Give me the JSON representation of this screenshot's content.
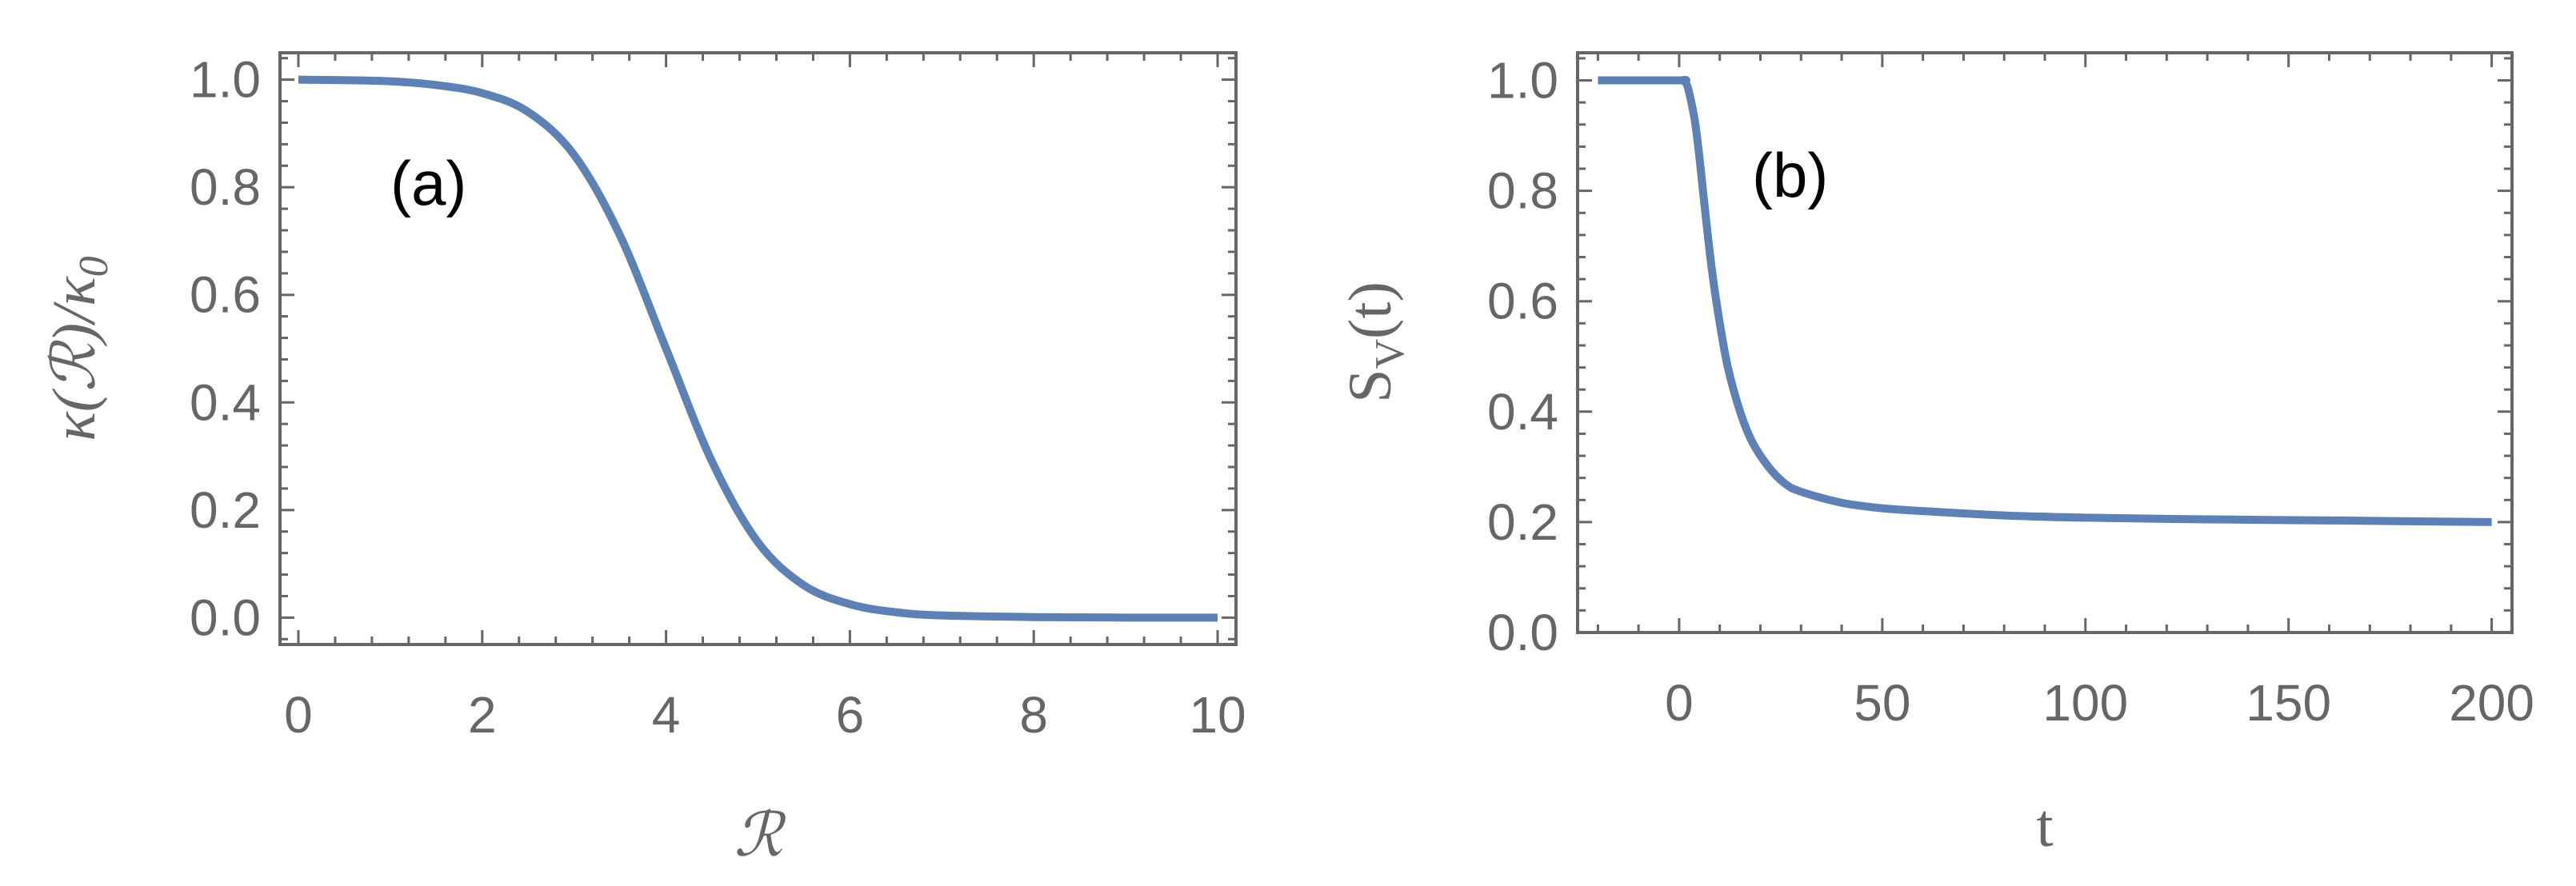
{
  "chart_data": [
    {
      "type": "line",
      "panel_label": "(a)",
      "xlabel": "ℛ",
      "ylabel": "κ(ℛ)/κ0",
      "ylabel_parts": {
        "pre": "κ(ℛ)/κ",
        "sub": "0"
      },
      "xlim": [
        -0.2,
        10.2
      ],
      "ylim": [
        -0.05,
        1.05
      ],
      "xticks": [
        "0",
        "2",
        "4",
        "6",
        "8",
        "10"
      ],
      "yticks": [
        "0.0",
        "0.2",
        "0.4",
        "0.6",
        "0.8",
        "1.0"
      ],
      "grid": false,
      "series": [
        {
          "color": "#5e81b5",
          "x": [
            0,
            0.5,
            1,
            1.5,
            2,
            2.5,
            3,
            3.5,
            4,
            4.5,
            5,
            5.5,
            6,
            6.5,
            7,
            8,
            9,
            10
          ],
          "y": [
            1.0,
            0.999,
            0.997,
            0.99,
            0.975,
            0.94,
            0.86,
            0.71,
            0.5,
            0.29,
            0.14,
            0.06,
            0.025,
            0.01,
            0.004,
            0.001,
            0.0,
            0.0
          ]
        }
      ]
    },
    {
      "type": "line",
      "panel_label": "(b)",
      "xlabel": "t",
      "ylabel": "SV(t)",
      "ylabel_parts": {
        "pre": "S",
        "sub": "V",
        "post": "(t)"
      },
      "xlim": [
        -25,
        205
      ],
      "ylim": [
        0.0,
        1.05
      ],
      "xticks": [
        "0",
        "50",
        "100",
        "150",
        "200"
      ],
      "yticks": [
        "0.0",
        "0.2",
        "0.4",
        "0.6",
        "0.8",
        "1.0"
      ],
      "grid": false,
      "series": [
        {
          "color": "#5e81b5",
          "x": [
            -20,
            0,
            1,
            2,
            3,
            4,
            5,
            6,
            8,
            10,
            12,
            15,
            18,
            22,
            26,
            30,
            40,
            50,
            60,
            80,
            100,
            130,
            160,
            200
          ],
          "y": [
            1.0,
            1.0,
            1.0,
            0.99,
            0.96,
            0.92,
            0.86,
            0.79,
            0.66,
            0.56,
            0.48,
            0.4,
            0.345,
            0.3,
            0.27,
            0.255,
            0.235,
            0.225,
            0.22,
            0.212,
            0.208,
            0.205,
            0.203,
            0.2
          ]
        }
      ]
    }
  ]
}
